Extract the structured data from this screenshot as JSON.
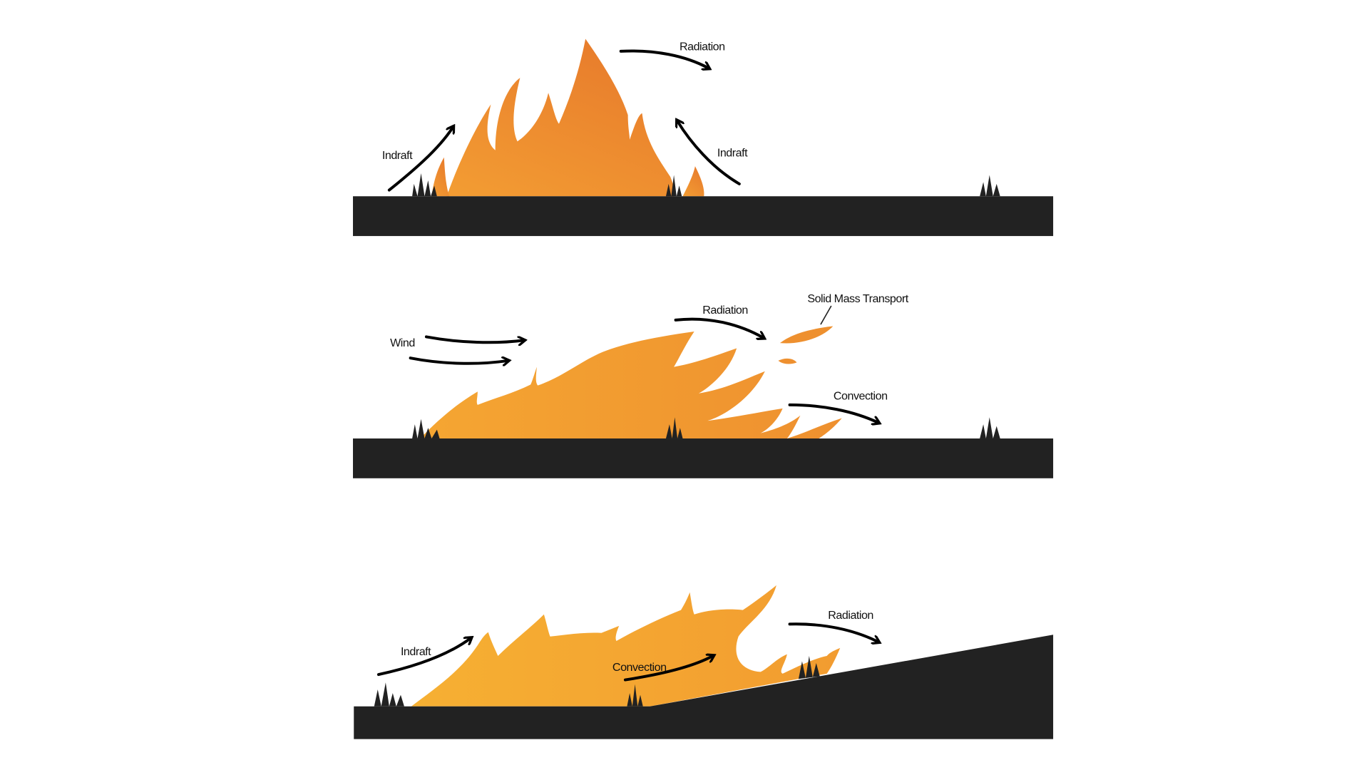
{
  "panels": [
    {
      "labels": [
        "Radiation",
        "Indraft",
        "Indraft"
      ]
    },
    {
      "labels": [
        "Wind",
        "Radiation",
        "Solid Mass Transport",
        "Convection"
      ]
    },
    {
      "labels": [
        "Indraft",
        "Radiation",
        "Convection"
      ]
    }
  ]
}
